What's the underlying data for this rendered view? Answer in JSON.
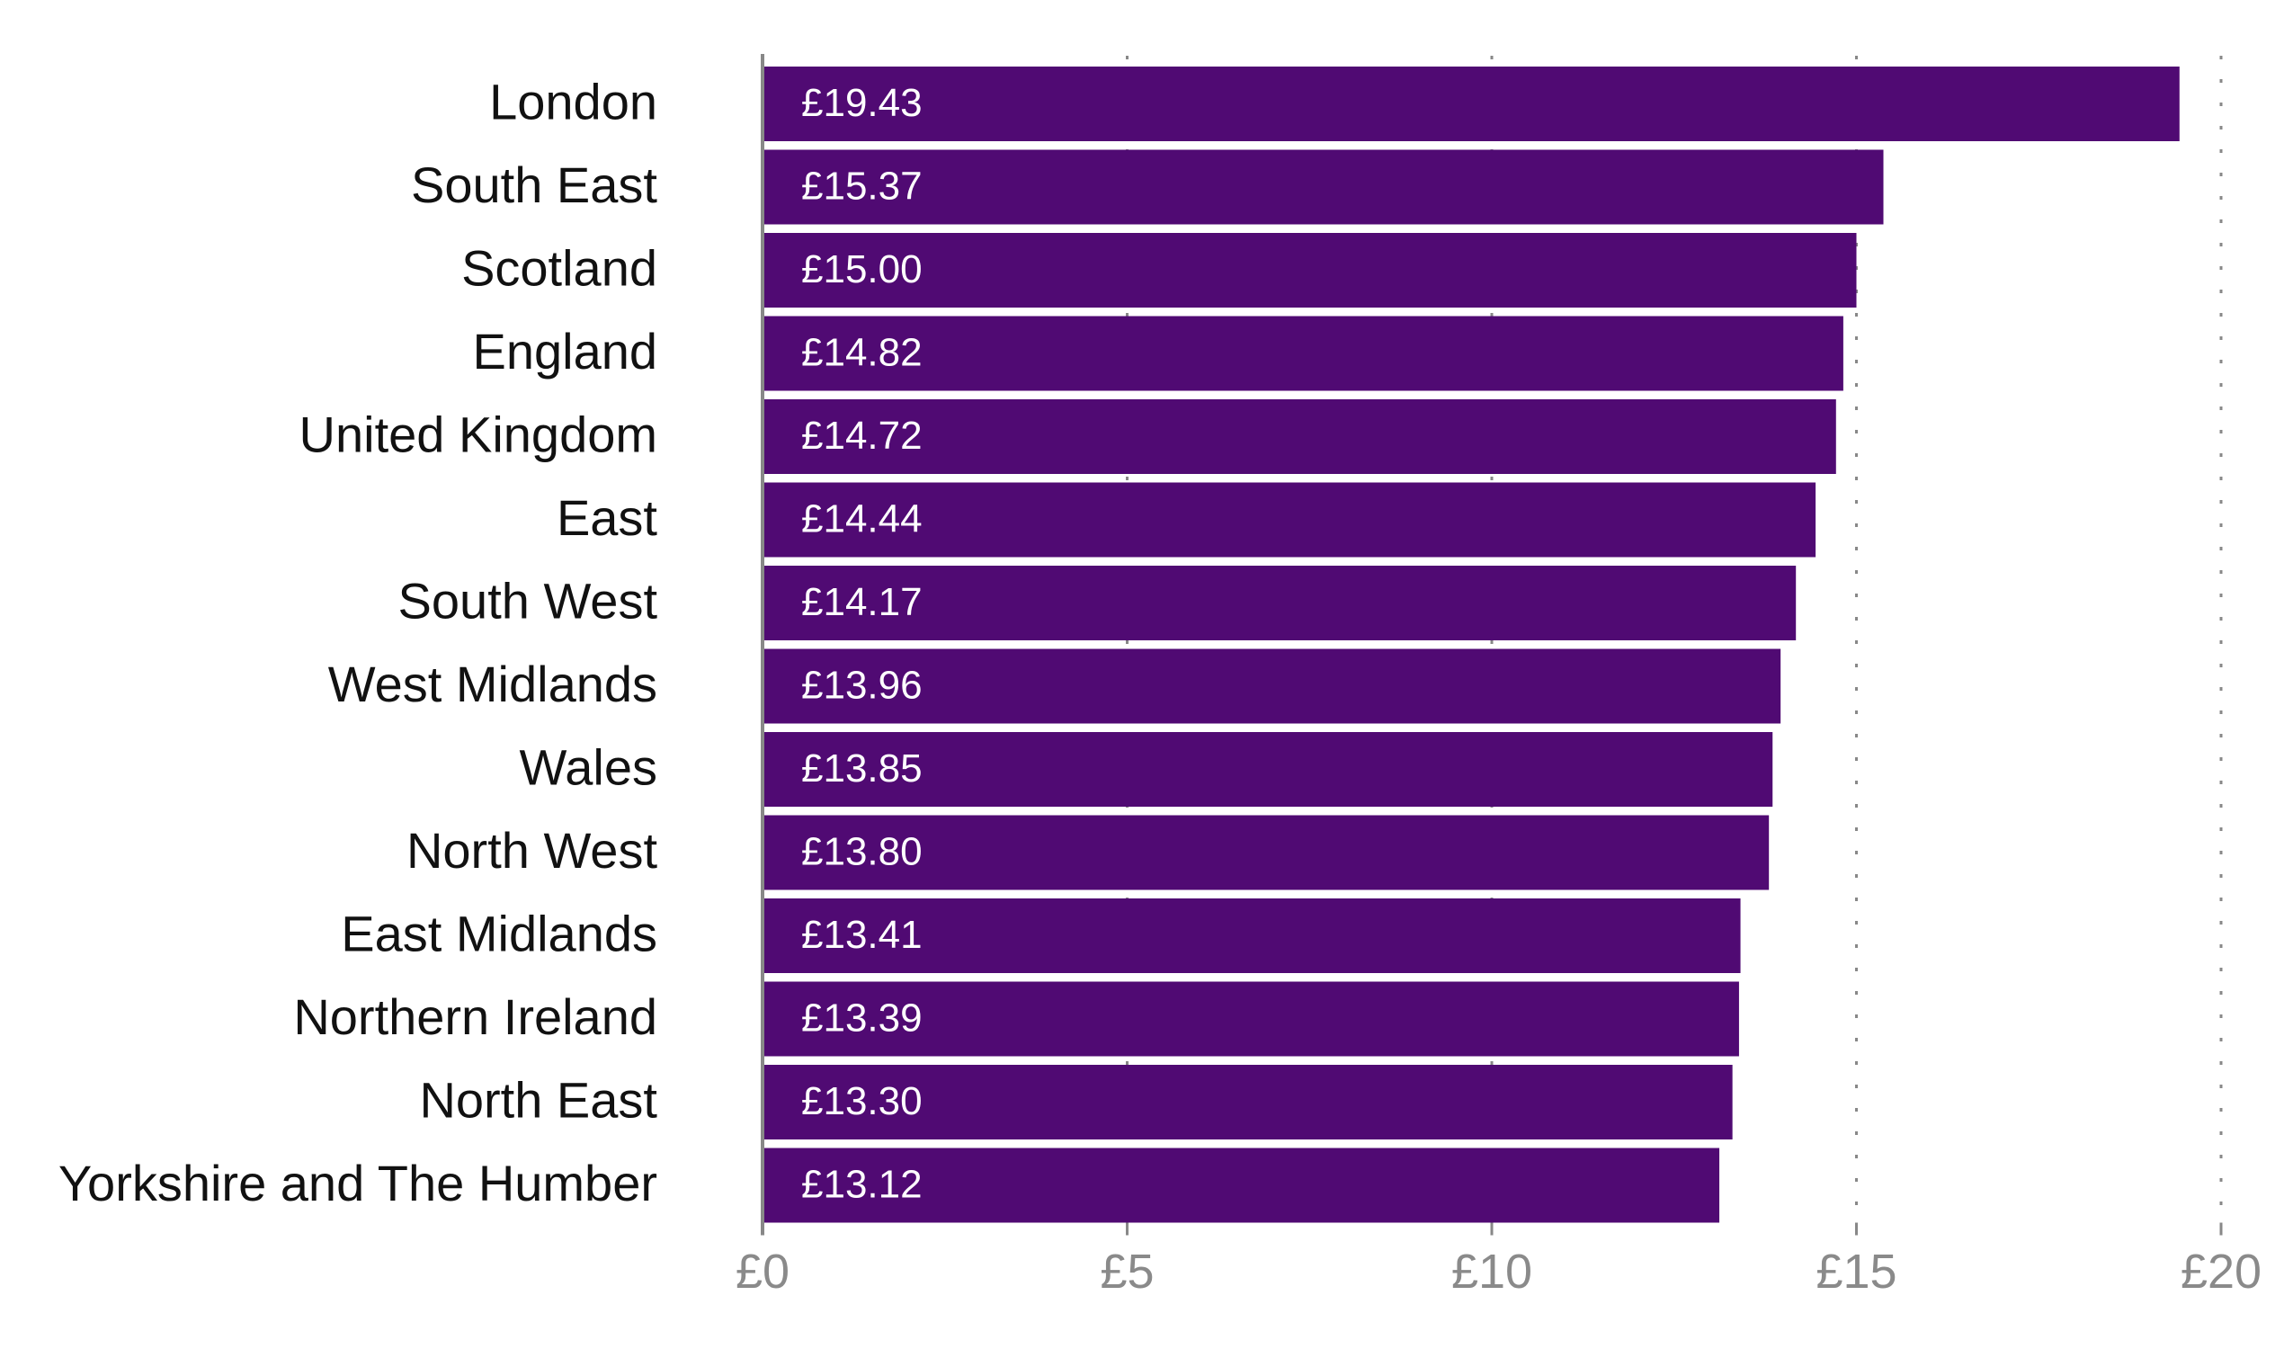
{
  "chart_data": {
    "type": "bar",
    "orientation": "horizontal",
    "categories": [
      "London",
      "South East",
      "Scotland",
      "England",
      "United Kingdom",
      "East",
      "South West",
      "West Midlands",
      "Wales",
      "North West",
      "East Midlands",
      "Northern Ireland",
      "North East",
      "Yorkshire and The Humber"
    ],
    "values": [
      19.43,
      15.37,
      15.0,
      14.82,
      14.72,
      14.44,
      14.17,
      13.96,
      13.85,
      13.8,
      13.41,
      13.39,
      13.3,
      13.12
    ],
    "data_labels": [
      "£19.43",
      "£15.37",
      "£15.00",
      "£14.82",
      "£14.72",
      "£14.44",
      "£14.17",
      "£13.96",
      "£13.85",
      "£13.80",
      "£13.41",
      "£13.39",
      "£13.30",
      "£13.12"
    ],
    "xlim": [
      0,
      20
    ],
    "x_ticks": [
      0,
      5,
      10,
      15,
      20
    ],
    "x_tick_labels": [
      "£0",
      "£5",
      "£10",
      "£15",
      "£20"
    ],
    "grid": "vertical dotted",
    "bar_color": "#500a73",
    "title": "",
    "xlabel": "",
    "ylabel": ""
  }
}
